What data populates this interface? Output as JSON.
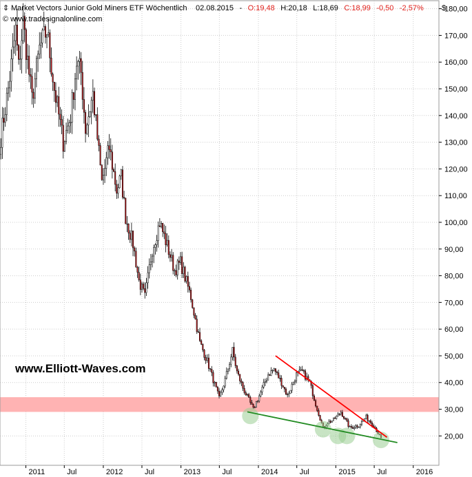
{
  "header": {
    "title": "Market Vectors Junior Gold Miners ETF Wöchentlich",
    "date": "02.08.2015",
    "open": "O:19,48",
    "high": "H:20,18",
    "low": "L:18,69",
    "close": "C:18,99",
    "change": "-0,50",
    "change_pct": "-2,57%",
    "copyright": "© www.tradesignalonline.com",
    "currency": "$"
  },
  "watermark": "www.Elliott-Waves.com",
  "colors": {
    "candle_up": "#ffffff",
    "candle_down": "#c0191c",
    "candle_outline": "#000000",
    "resistance_line": "#ff0000",
    "support_line": "#228b22",
    "support_zone": "#ffb3b3",
    "touch_circle": "#9acd94",
    "grid": "#cccccc"
  },
  "chart_data": {
    "type": "candlestick",
    "title": "Market Vectors Junior Gold Miners ETF Wöchentlich",
    "y_unit": "$",
    "ylim": [
      9,
      183
    ],
    "x_range": [
      "2010-09-01",
      "2016-05-01"
    ],
    "y_ticks": [
      {
        "value": 20,
        "label": "20,00"
      },
      {
        "value": 30,
        "label": "30,00"
      },
      {
        "value": 40,
        "label": "40,00"
      },
      {
        "value": 50,
        "label": "50,00"
      },
      {
        "value": 60,
        "label": "60,00"
      },
      {
        "value": 70,
        "label": "70,00"
      },
      {
        "value": 80,
        "label": "80,00"
      },
      {
        "value": 90,
        "label": "90,00"
      },
      {
        "value": 100,
        "label": "100,00"
      },
      {
        "value": 110,
        "label": "110,00"
      },
      {
        "value": 120,
        "label": "120,00"
      },
      {
        "value": 130,
        "label": "130,00"
      },
      {
        "value": 140,
        "label": "140,00"
      },
      {
        "value": 150,
        "label": "150,00"
      },
      {
        "value": 160,
        "label": "160,00"
      },
      {
        "value": 170,
        "label": "170,00"
      },
      {
        "value": 180,
        "label": "180,00"
      }
    ],
    "x_ticks": [
      {
        "date": "2011-01-01",
        "label": "2011"
      },
      {
        "date": "2011-07-01",
        "label": "Jul"
      },
      {
        "date": "2012-01-01",
        "label": "2012"
      },
      {
        "date": "2012-07-01",
        "label": "Jul"
      },
      {
        "date": "2013-01-01",
        "label": "2013"
      },
      {
        "date": "2013-07-01",
        "label": "Jul"
      },
      {
        "date": "2014-01-01",
        "label": "2014"
      },
      {
        "date": "2014-07-01",
        "label": "Jul"
      },
      {
        "date": "2015-01-01",
        "label": "2015"
      },
      {
        "date": "2015-07-01",
        "label": "Jul"
      },
      {
        "date": "2016-01-01",
        "label": "2016"
      }
    ],
    "price_path": [
      [
        "2010-09-05",
        132
      ],
      [
        "2010-10-10",
        150
      ],
      [
        "2010-11-14",
        172
      ],
      [
        "2010-11-28",
        158
      ],
      [
        "2010-12-19",
        175
      ],
      [
        "2011-01-30",
        146
      ],
      [
        "2011-03-06",
        165
      ],
      [
        "2011-04-10",
        172
      ],
      [
        "2011-05-15",
        150
      ],
      [
        "2011-06-26",
        130
      ],
      [
        "2011-07-31",
        140
      ],
      [
        "2011-08-28",
        160
      ],
      [
        "2011-09-18",
        156
      ],
      [
        "2011-10-09",
        135
      ],
      [
        "2011-11-13",
        148
      ],
      [
        "2011-12-25",
        115
      ],
      [
        "2012-01-29",
        128
      ],
      [
        "2012-03-04",
        112
      ],
      [
        "2012-03-25",
        117
      ],
      [
        "2012-04-15",
        102
      ],
      [
        "2012-05-20",
        92
      ],
      [
        "2012-06-17",
        78
      ],
      [
        "2012-07-15",
        72
      ],
      [
        "2012-08-19",
        90
      ],
      [
        "2012-09-23",
        100
      ],
      [
        "2012-10-21",
        93
      ],
      [
        "2012-12-02",
        82
      ],
      [
        "2012-12-30",
        85
      ],
      [
        "2013-02-17",
        72
      ],
      [
        "2013-03-31",
        55
      ],
      [
        "2013-05-05",
        48
      ],
      [
        "2013-06-30",
        34
      ],
      [
        "2013-07-28",
        41
      ],
      [
        "2013-09-01",
        52
      ],
      [
        "2013-09-22",
        44
      ],
      [
        "2013-10-20",
        38
      ],
      [
        "2013-12-08",
        30
      ],
      [
        "2014-01-05",
        35
      ],
      [
        "2014-02-16",
        43
      ],
      [
        "2014-03-16",
        45
      ],
      [
        "2014-04-20",
        40
      ],
      [
        "2014-05-18",
        35
      ],
      [
        "2014-06-29",
        43
      ],
      [
        "2014-07-27",
        44
      ],
      [
        "2014-08-31",
        40
      ],
      [
        "2014-09-28",
        32
      ],
      [
        "2014-11-02",
        23
      ],
      [
        "2014-11-23",
        25
      ],
      [
        "2014-12-21",
        26
      ],
      [
        "2015-01-25",
        29
      ],
      [
        "2015-03-08",
        23
      ],
      [
        "2015-04-19",
        24
      ],
      [
        "2015-05-24",
        27
      ],
      [
        "2015-06-28",
        24
      ],
      [
        "2015-08-02",
        19
      ]
    ],
    "resistance_line": [
      [
        "2014-03-23",
        50
      ],
      [
        "2015-08-30",
        19.5
      ]
    ],
    "support_line": [
      [
        "2013-11-10",
        29
      ],
      [
        "2015-10-18",
        17.5
      ]
    ],
    "support_zone": [
      29,
      34.5
    ],
    "touch_points": [
      [
        "2013-11-24",
        27.5
      ],
      [
        "2014-11-02",
        22.5
      ],
      [
        "2015-01-11",
        20
      ],
      [
        "2015-02-22",
        20
      ],
      [
        "2015-08-02",
        18.5
      ]
    ]
  }
}
